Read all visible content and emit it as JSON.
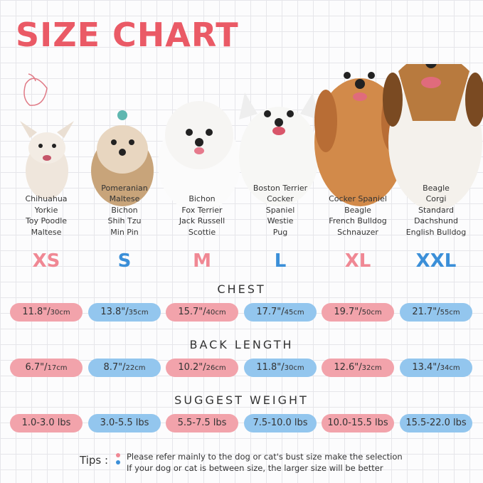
{
  "header": {
    "title": "SIZE CHART"
  },
  "sizes": [
    {
      "size": "XS",
      "breeds": [
        "Chihuahua",
        "Yorkie",
        "Toy Poodle",
        "Maltese"
      ],
      "chest": {
        "inch": "11.8\"/",
        "cm": "30cm"
      },
      "back_length": {
        "inch": "6.7\"/",
        "cm": "17cm"
      },
      "weight": "1.0-3.0 lbs"
    },
    {
      "size": "S",
      "breeds": [
        "Pomeranian",
        "Maltese",
        "Bichon",
        "Shih Tzu",
        "Min Pin"
      ],
      "chest": {
        "inch": "13.8\"/",
        "cm": "35cm"
      },
      "back_length": {
        "inch": "8.7\"/",
        "cm": "22cm"
      },
      "weight": "3.0-5.5 lbs"
    },
    {
      "size": "M",
      "breeds": [
        "Bichon",
        "Fox Terrier",
        "Jack Russell",
        "Scottie"
      ],
      "chest": {
        "inch": "15.7\"/",
        "cm": "40cm"
      },
      "back_length": {
        "inch": "10.2\"/",
        "cm": "26cm"
      },
      "weight": "5.5-7.5 lbs"
    },
    {
      "size": "L",
      "breeds": [
        "Boston Terrier",
        "Cocker",
        "Spaniel",
        "Westie",
        "Pug"
      ],
      "chest": {
        "inch": "17.7\"/",
        "cm": "45cm"
      },
      "back_length": {
        "inch": "11.8\"/",
        "cm": "30cm"
      },
      "weight": "7.5-10.0 lbs"
    },
    {
      "size": "XL",
      "breeds": [
        "Cocker Spaniel",
        "Beagle",
        "French Bulldog",
        "Schnauzer"
      ],
      "chest": {
        "inch": "19.7\"/",
        "cm": "50cm"
      },
      "back_length": {
        "inch": "12.6\"/",
        "cm": "32cm"
      },
      "weight": "10.0-15.5 lbs"
    },
    {
      "size": "XXL",
      "breeds": [
        "Beagle",
        "Corgi",
        "Standard",
        "Dachshund",
        "English Bulldog"
      ],
      "chest": {
        "inch": "21.7\"/",
        "cm": "55cm"
      },
      "back_length": {
        "inch": "13.4\"/",
        "cm": "34cm"
      },
      "weight": "15.5-22.0 lbs"
    }
  ],
  "sections": {
    "chest": "CHEST",
    "back_length": "BACK LENGTH",
    "weight": "SUGGEST WEIGHT"
  },
  "tips": {
    "label": "Tips :",
    "lines": [
      "Please refer mainly to the dog or cat's bust size make the selection",
      "If your dog or cat is between size, the larger size will be better"
    ]
  }
}
